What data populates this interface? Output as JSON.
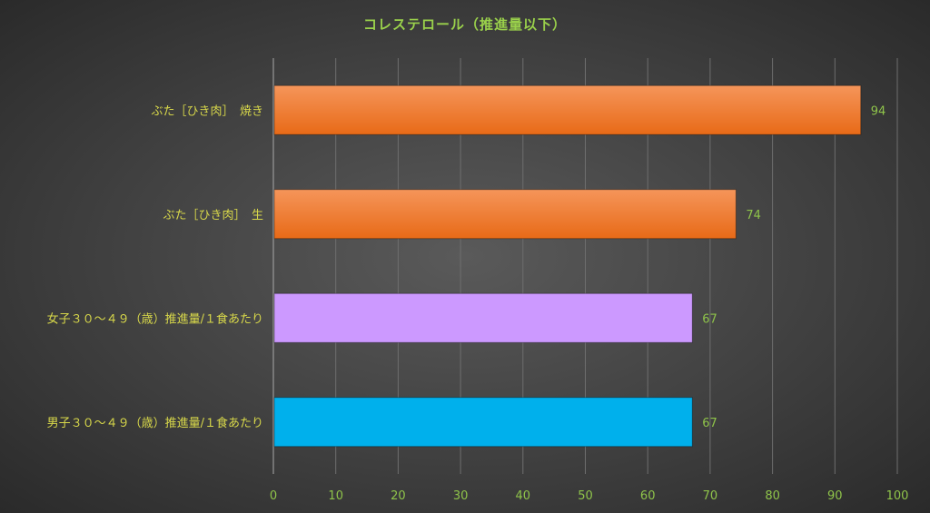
{
  "chart_data": {
    "type": "bar",
    "orientation": "horizontal",
    "title": "コレステロール（推進量以下）",
    "categories": [
      "ぶた［ひき肉］　焼き",
      "ぶた［ひき肉］　生",
      "女子３０～４９（歳）推進量/１食あたり",
      "男子３０～４９（歳）推進量/１食あたり"
    ],
    "values": [
      94,
      74,
      67,
      67
    ],
    "colors": [
      "#ef7a2a",
      "#ef7a2a",
      "#cc99ff",
      "#00b0ec"
    ],
    "xlim": [
      0,
      100
    ],
    "xticks": [
      0,
      10,
      20,
      30,
      40,
      50,
      60,
      70,
      80,
      90,
      100
    ],
    "grid": true,
    "data_labels": true
  }
}
